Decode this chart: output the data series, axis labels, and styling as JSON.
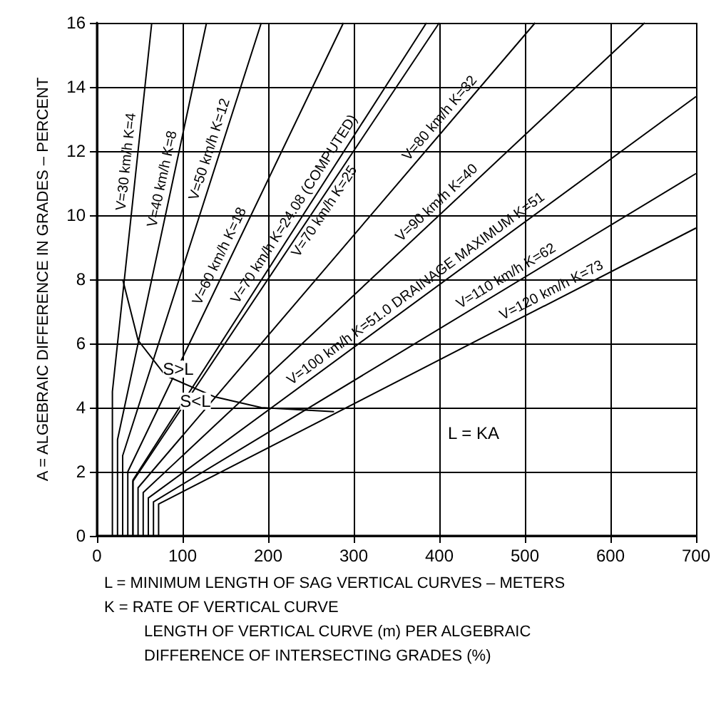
{
  "chart_data": {
    "type": "line",
    "xlabel": "L = MINIMUM LENGTH OF SAG VERTICAL CURVES – METERS",
    "ylabel": "A = ALGEBRAIC DIFFERENCE IN GRADES – PERCENT",
    "xlim": [
      0,
      700
    ],
    "xticks": [
      0,
      100,
      200,
      300,
      400,
      500,
      600,
      700
    ],
    "ylim": [
      0,
      16
    ],
    "yticks": [
      0,
      2,
      4,
      6,
      8,
      10,
      12,
      14,
      16
    ],
    "grid": true,
    "legend": false,
    "marker": "none",
    "line_style": "solid",
    "series": [
      {
        "name": "V=30 km/h K=4",
        "color": "#000000",
        "x": [
          18,
          18,
          64
        ],
        "values": [
          0,
          4.5,
          16
        ]
      },
      {
        "name": "V=40 km/h K=8",
        "color": "#000000",
        "x": [
          24,
          24,
          128
        ],
        "values": [
          0,
          3,
          16
        ]
      },
      {
        "name": "V=50 km/h K=12",
        "color": "#000000",
        "x": [
          30,
          30,
          192
        ],
        "values": [
          0,
          2.5,
          16
        ]
      },
      {
        "name": "V=60 km/h K=18",
        "color": "#000000",
        "x": [
          36,
          36,
          288
        ],
        "values": [
          0,
          2,
          16
        ]
      },
      {
        "name": "V=70 km/h K=24.08 (COMPUTED)",
        "color": "#000000",
        "x": [
          42,
          42,
          385
        ],
        "values": [
          0,
          1.74,
          16
        ]
      },
      {
        "name": "V=70 km/h K=25",
        "color": "#000000",
        "x": [
          42,
          42,
          400
        ],
        "values": [
          0,
          1.7,
          16
        ]
      },
      {
        "name": "V=80 km/h K=32",
        "color": "#000000",
        "x": [
          48,
          48,
          512
        ],
        "values": [
          0,
          1.5,
          16
        ]
      },
      {
        "name": "V=90 km/h K=40",
        "color": "#000000",
        "x": [
          54,
          54,
          640
        ],
        "values": [
          0,
          1.35,
          16
        ]
      },
      {
        "name": "V=100 km/h K=51.0 DRAINAGE MAXIMUM K=51",
        "color": "#000000",
        "x": [
          60,
          60,
          700
        ],
        "values": [
          0,
          1.18,
          13.7
        ]
      },
      {
        "name": "V=110 km/h K=62",
        "color": "#000000",
        "x": [
          66,
          66,
          700
        ],
        "values": [
          0,
          1.06,
          11.3
        ]
      },
      {
        "name": "V=120 km/h K=73",
        "color": "#000000",
        "x": [
          72,
          72,
          700
        ],
        "values": [
          0,
          0.99,
          9.6
        ]
      },
      {
        "color": "#000000",
        "x": [
          30,
          48,
          80,
          137,
          192,
          277
        ],
        "values": [
          8,
          6.1,
          5,
          4.34,
          4,
          3.87
        ]
      }
    ],
    "annotations": [
      {
        "text": "S>L",
        "x": 95,
        "y": 5.2
      },
      {
        "text": "S<L",
        "x": 115,
        "y": 4.2
      },
      {
        "text": "L = KA",
        "x": 440,
        "y": 3.2
      },
      "K = RATE OF VERTICAL CURVE",
      "LENGTH OF VERTICAL CURVE (m) PER ALGEBRAIC",
      "DIFFERENCE OF INTERSECTING GRADES (%)"
    ]
  }
}
